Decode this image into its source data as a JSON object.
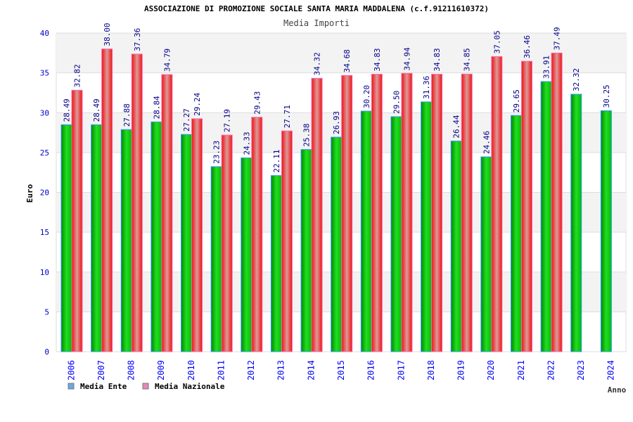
{
  "chart_data": {
    "type": "bar",
    "header": "ASSOCIAZIONE DI PROMOZIONE SOCIALE SANTA MARIA MADDALENA (c.f.91211610372)",
    "title": "Media Importi",
    "xlabel": "Anno",
    "ylabel": "Euro",
    "ylim": [
      0,
      40
    ],
    "yticks": [
      0,
      5,
      10,
      15,
      20,
      25,
      30,
      35,
      40
    ],
    "categories": [
      "2006",
      "2007",
      "2008",
      "2009",
      "2010",
      "2011",
      "2012",
      "2013",
      "2014",
      "2015",
      "2016",
      "2017",
      "2018",
      "2019",
      "2020",
      "2021",
      "2022",
      "2023",
      "2024"
    ],
    "series": [
      {
        "name": "Media Ente",
        "color": "#00cc00",
        "legend_color": "#6aa8e8",
        "values": [
          28.49,
          28.49,
          27.88,
          28.84,
          27.27,
          23.23,
          24.33,
          22.11,
          25.38,
          26.93,
          30.2,
          29.5,
          31.36,
          26.44,
          24.46,
          29.65,
          33.91,
          32.32,
          30.25
        ]
      },
      {
        "name": "Media Nazionale",
        "color": "#ee1111",
        "legend_color": "#e888b8",
        "values": [
          32.82,
          38.0,
          37.36,
          34.79,
          29.24,
          27.19,
          29.43,
          27.71,
          34.32,
          34.68,
          34.83,
          34.94,
          34.83,
          34.85,
          37.05,
          36.46,
          37.49,
          null,
          null
        ]
      }
    ],
    "grid": true,
    "legend": "bottom-left"
  }
}
